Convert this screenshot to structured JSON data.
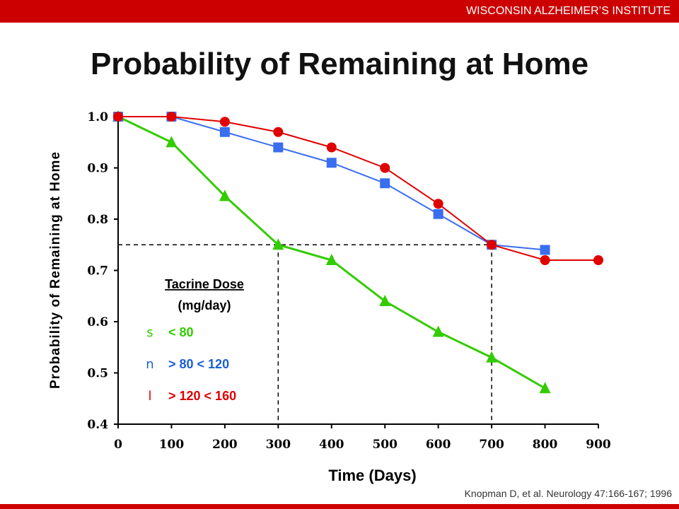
{
  "header": {
    "institute": "WISCONSIN ALZHEIMER’S INSTITUTE"
  },
  "title": "Probability of Remaining at Home",
  "citation": "Knopman D, et al. Neurology 47:166-167; 1996",
  "colors": {
    "green": "#33cc00",
    "blue": "#3a6ef0",
    "red": "#e00000",
    "bar": "#cc0000"
  },
  "chart_data": {
    "type": "line",
    "title": "Probability of Remaining at Home",
    "xlabel": "Time (Days)",
    "ylabel": "Probability of Remaining at Home",
    "xlim": [
      0,
      900
    ],
    "ylim": [
      0.4,
      1.0
    ],
    "x_ticks": [
      "0",
      "100",
      "200",
      "300",
      "400",
      "500",
      "600",
      "700",
      "800",
      "900"
    ],
    "y_ticks": [
      "0.4",
      "0.5",
      "0.6",
      "0.7",
      "0.8",
      "0.9",
      "1.0"
    ],
    "grid": false,
    "legend": {
      "title": "Tacrine Dose",
      "subtitle": "(mg/day)",
      "placement": "lower-left",
      "entries": [
        {
          "glyph": "s",
          "label": "< 80",
          "color": "#33cc00"
        },
        {
          "glyph": "n",
          "label": "> 80 < 120",
          "color": "#1a5fd6"
        },
        {
          "glyph": "l",
          "label": "> 120 < 160",
          "color": "#e00000"
        }
      ]
    },
    "series": [
      {
        "marker": "triangle",
        "color": "#33cc00",
        "x": [
          0,
          100,
          200,
          300,
          400,
          500,
          600,
          700,
          800
        ],
        "y": [
          1.0,
          0.95,
          0.845,
          0.75,
          0.72,
          0.64,
          0.58,
          0.53,
          0.47
        ]
      },
      {
        "marker": "square",
        "color": "#3a6ef0",
        "x": [
          0,
          100,
          200,
          300,
          400,
          500,
          600,
          700,
          800
        ],
        "y": [
          1.0,
          1.0,
          0.97,
          0.94,
          0.91,
          0.87,
          0.81,
          0.75,
          0.74
        ]
      },
      {
        "marker": "circle",
        "color": "#e00000",
        "x": [
          0,
          100,
          200,
          300,
          400,
          500,
          600,
          700,
          800,
          900
        ],
        "y": [
          1.0,
          1.0,
          0.99,
          0.97,
          0.94,
          0.9,
          0.83,
          0.75,
          0.72,
          0.72
        ]
      }
    ],
    "reference_lines": {
      "y": 0.75,
      "x": [
        300,
        700
      ]
    }
  }
}
